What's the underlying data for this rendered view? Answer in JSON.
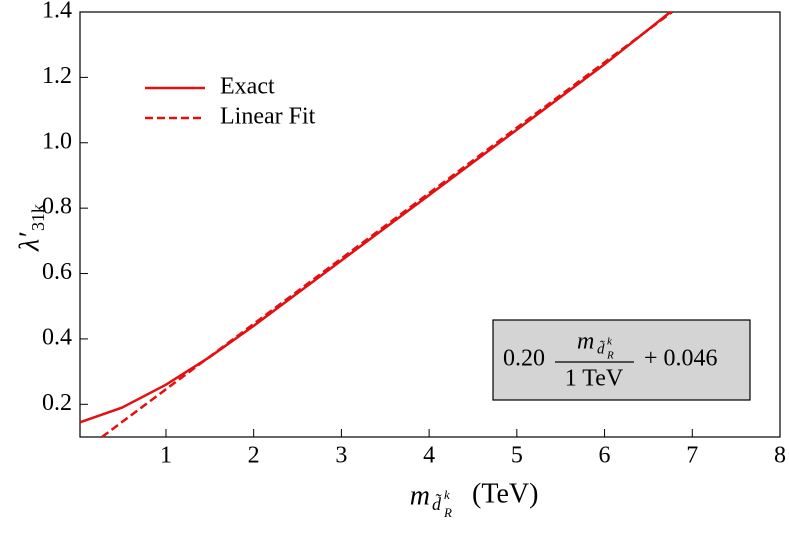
{
  "chart_data": {
    "type": "line",
    "xlabel": {
      "symbol": "m",
      "sub": "d̃",
      "subsub": "R",
      "sup": "k",
      "unit": "(TeV)"
    },
    "ylabel": {
      "symbol": "λ′",
      "sub": "31k"
    },
    "series": [
      {
        "name": "Exact",
        "color": "#e41010",
        "dash": false,
        "x": [
          0.02,
          0.5,
          1,
          1.5,
          2,
          2.5,
          3,
          4,
          5,
          6,
          6.75
        ],
        "values": [
          0.145,
          0.19,
          0.26,
          0.345,
          0.44,
          0.54,
          0.64,
          0.84,
          1.04,
          1.24,
          1.4
        ]
      },
      {
        "name": "Linear Fit",
        "color": "#e41010",
        "dash": true,
        "x": [
          0.27,
          6.77
        ],
        "values": [
          0.1,
          1.4
        ]
      }
    ],
    "annotation": {
      "coefficient": "0.20",
      "numerator": "m",
      "numerator_sub": "d̃",
      "numerator_subsub": "R",
      "numerator_sup": "k",
      "denominator": "1 TeV",
      "offset": "+ 0.046"
    },
    "xlim": [
      0.02,
      8
    ],
    "ylim": [
      0.1,
      1.4
    ],
    "xticks": [
      1,
      2,
      3,
      4,
      5,
      6,
      7,
      8
    ],
    "yticks": [
      0.2,
      0.4,
      0.6,
      0.8,
      {
        "value": 1,
        "label": "1.0"
      },
      1.2,
      1.4
    ],
    "grid": false
  }
}
